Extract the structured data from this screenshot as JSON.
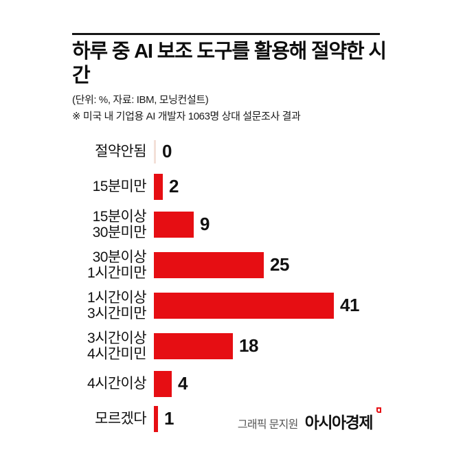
{
  "header": {
    "title": "하루 중 AI 보조 도구를 활용해 절약한 시간",
    "unit_source": "(단위: %, 자료: IBM, 모닝컨설트)",
    "note": "※ 미국 내 기업용 AI 개발자 1063명 상대 설문조사 결과"
  },
  "chart_data": {
    "type": "bar",
    "orientation": "horizontal",
    "unit": "%",
    "categories": [
      "절약안됨",
      "15분미만",
      "15분이상\n30분미만",
      "30분이상\n1시간미만",
      "1시간이상\n3시간미만",
      "3시간이상\n4시간미민",
      "4시간이상",
      "모르겠다"
    ],
    "values": [
      0,
      2,
      9,
      25,
      41,
      18,
      4,
      1
    ],
    "xlim": [
      0,
      41
    ],
    "grid": false,
    "value_labels_position": "right-of-bar",
    "bar_color": "#e60e13",
    "zero_axis_color": "#f3e0d8"
  },
  "footer": {
    "credit": "그래픽 문지원",
    "logo": "아시아경제"
  },
  "colors": {
    "accent_red": "#e60e13",
    "rule_black": "#151515",
    "credit_gray": "#555555"
  }
}
